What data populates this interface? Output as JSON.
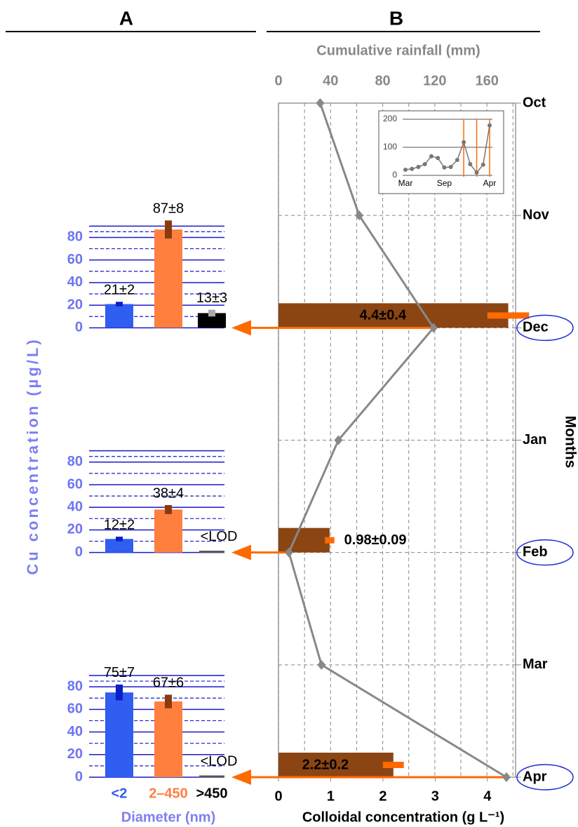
{
  "chart_data": [
    {
      "type": "bar",
      "title": "A",
      "ylabel": "Cu concentration (µg/L)",
      "categories": [
        null,
        null,
        null
      ],
      "values": [
        21,
        87,
        13
      ],
      "errors": [
        2,
        8,
        3
      ],
      "value_labels": [
        "21±2",
        "87±8",
        "13±3"
      ],
      "colors": [
        "#2f5ef0",
        "#ff7f3f",
        "#000000"
      ],
      "error_colors": [
        "#0a1fc8",
        "#8b3a0e",
        "#aaaaaa"
      ],
      "ylim": [
        0,
        90
      ],
      "yticks": [
        0,
        20,
        40,
        60,
        80
      ],
      "grid": true
    },
    {
      "type": "bar",
      "categories": [
        null,
        null,
        null
      ],
      "values": [
        12,
        38,
        null
      ],
      "errors": [
        2,
        4,
        null
      ],
      "value_labels": [
        "12±2",
        "38±4",
        "<LOD"
      ],
      "colors": [
        "#2f5ef0",
        "#ff7f3f",
        "#000000"
      ],
      "error_colors": [
        "#0a1fc8",
        "#8b3a0e",
        "#aaaaaa"
      ],
      "ylim": [
        0,
        90
      ],
      "yticks": [
        0,
        20,
        40,
        60,
        80
      ],
      "grid": true
    },
    {
      "type": "bar",
      "xlabel": "Diameter (nm)",
      "categories": [
        "<2",
        "2–450",
        ">450"
      ],
      "values": [
        75,
        67,
        null
      ],
      "errors": [
        7,
        6,
        null
      ],
      "value_labels": [
        "75±7",
        "67±6",
        "<LOD"
      ],
      "colors": [
        "#2f5ef0",
        "#ff7f3f",
        "#000000"
      ],
      "error_colors": [
        "#0a1fc8",
        "#8b3a0e",
        "#aaaaaa"
      ],
      "ylim": [
        0,
        90
      ],
      "yticks": [
        0,
        20,
        40,
        60,
        80
      ],
      "grid": true
    },
    {
      "type": "combo",
      "title": "B",
      "ylabel": "Months",
      "categories": [
        "Oct",
        "Nov",
        "Dec",
        "Jan",
        "Feb",
        "Mar",
        "Apr"
      ],
      "xlabel": "Colloidal concentration (g L⁻¹)",
      "xlim": [
        0,
        4.54
      ],
      "xticks": [
        0,
        1,
        2,
        3,
        4
      ],
      "x2label": "Cumulative rainfall (mm)",
      "x2lim": [
        0,
        182
      ],
      "x2ticks": [
        0,
        40,
        80,
        120,
        160
      ],
      "grid": true,
      "series": [
        {
          "type": "bar",
          "color": "#8b4513",
          "error_color": "#ff6a00",
          "values": [
            null,
            null,
            4.4,
            null,
            0.98,
            null,
            2.2
          ],
          "errors": [
            null,
            null,
            0.4,
            null,
            0.09,
            null,
            0.2
          ],
          "value_labels": [
            null,
            null,
            "4.4±0.4",
            null,
            "0.98±0.09",
            null,
            "2.2±0.2"
          ]
        },
        {
          "type": "line",
          "axis": "x2",
          "color": "#888888",
          "values": [
            32,
            62,
            119,
            46,
            8,
            33,
            175
          ]
        }
      ]
    },
    {
      "type": "line",
      "categories": [
        "Mar",
        null,
        null,
        null,
        null,
        null,
        "Sep",
        null,
        null,
        null,
        null,
        null,
        null,
        "Apr"
      ],
      "values": [
        20,
        23,
        30,
        40,
        68,
        62,
        28,
        30,
        55,
        118,
        40,
        10,
        38,
        178
      ],
      "ylim": [
        0,
        200
      ],
      "yticks": [
        0,
        100,
        200
      ],
      "grid": true,
      "color": "#777777",
      "markers": [
        9,
        11,
        13
      ],
      "marker_color": "#ff6a00"
    }
  ]
}
